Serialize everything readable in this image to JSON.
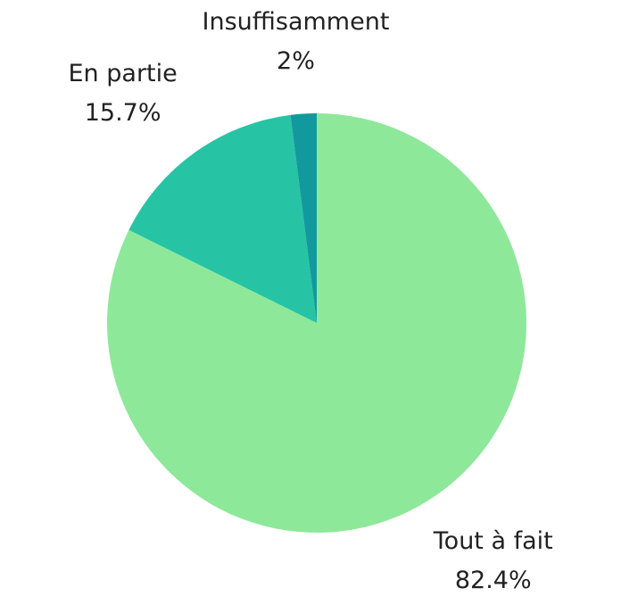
{
  "chart_data": {
    "type": "pie",
    "categories": [
      "Tout à fait",
      "En partie",
      "Insuffisamment"
    ],
    "values": [
      82.4,
      15.7,
      2
    ],
    "value_labels": [
      "82.4%",
      "15.7%",
      "2%"
    ],
    "colors": [
      "#8ee89a",
      "#26c4a4",
      "#11999e"
    ]
  }
}
